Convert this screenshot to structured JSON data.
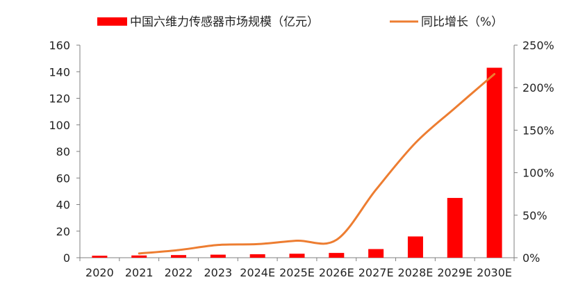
{
  "chart_data": {
    "type": "bar",
    "categories": [
      "2020",
      "2021",
      "2022",
      "2023",
      "2024E",
      "2025E",
      "2026E",
      "2027E",
      "2028E",
      "2029E",
      "2030E"
    ],
    "series": [
      {
        "name": "中国六维力传感器市场规模（亿元）",
        "type": "bar",
        "axis": "left",
        "color": "#ff0000",
        "values": [
          1.5,
          1.7,
          2.0,
          2.3,
          2.6,
          3.0,
          3.6,
          6.5,
          16.0,
          45.0,
          143.0
        ]
      },
      {
        "name": "同比增长（%）",
        "type": "line",
        "axis": "right",
        "color": "#ed7d31",
        "values": [
          null,
          5,
          9,
          15,
          16,
          20,
          21,
          80,
          135,
          176,
          216
        ]
      }
    ],
    "y_left": {
      "min": 0,
      "max": 160,
      "ticks": [
        0,
        20,
        40,
        60,
        80,
        100,
        120,
        140,
        160
      ]
    },
    "y_right": {
      "min": 0,
      "max": 250,
      "ticks": [
        0,
        50,
        100,
        150,
        200,
        250
      ],
      "tick_suffix": "%"
    },
    "legend": "top-center",
    "grid": false
  }
}
